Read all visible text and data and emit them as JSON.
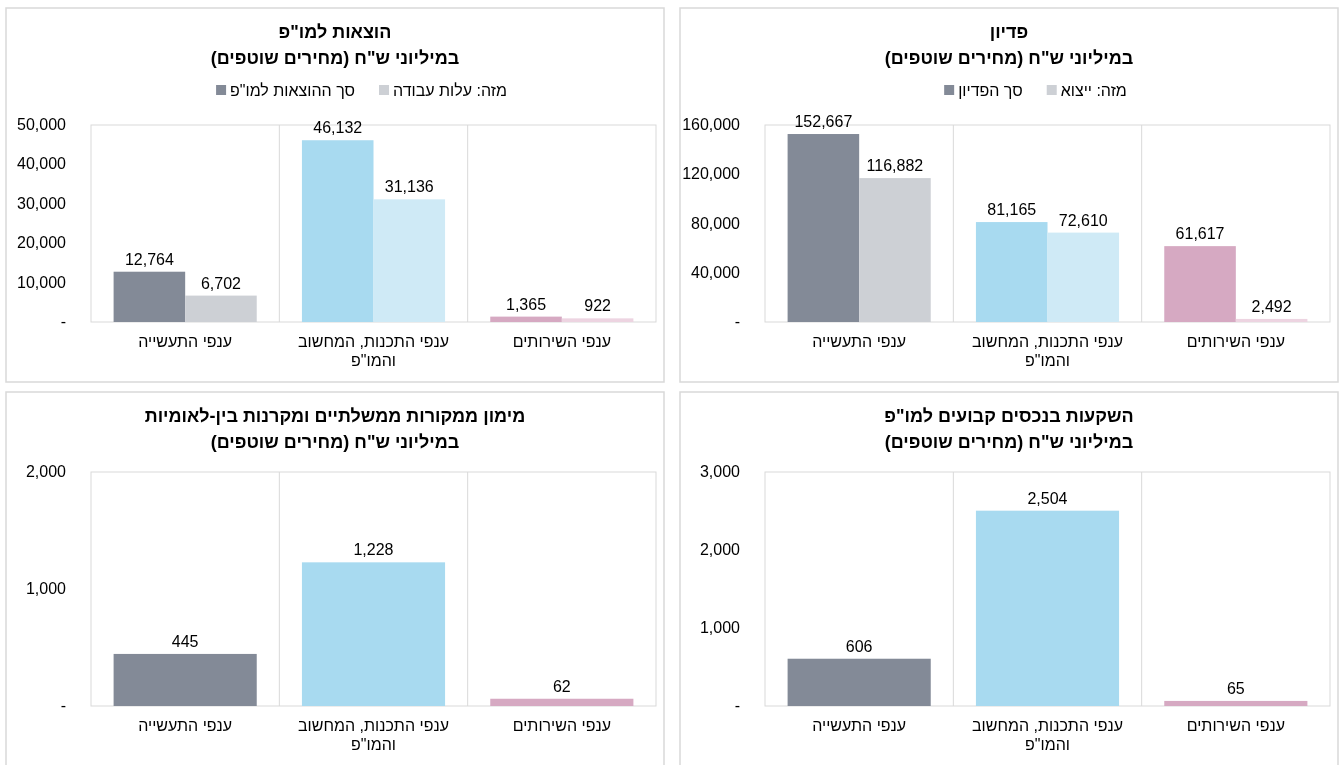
{
  "chart_data": [
    {
      "type": "bar",
      "title": "פדיון",
      "subtitle": "במיליוני ש\"ח (מחירים שוטפים)",
      "categories": [
        "ענפי התעשייה",
        "ענפי התכנות, המחשוב והמו\"פ",
        "ענפי השירותים"
      ],
      "series": [
        {
          "name": "סך הפדיון",
          "color": "#838a97",
          "colors": [
            "#838a97",
            "#a8daf0",
            "#d6a9c2"
          ],
          "values": [
            152667,
            81165,
            61617
          ],
          "value_labels": [
            "152,667",
            "81,165",
            "61,617"
          ]
        },
        {
          "name": "מזה: ייצוא",
          "color": "#cdd0d5",
          "colors": [
            "#cdd0d5",
            "#cfeaf6",
            "#edd4e1"
          ],
          "values": [
            116882,
            72610,
            2492
          ],
          "value_labels": [
            "116,882",
            "72,610",
            "2,492"
          ]
        }
      ],
      "ylim": [
        0,
        160000
      ],
      "yticks": [
        {
          "value": 0,
          "label": "-"
        },
        {
          "value": 40000,
          "label": "40,000"
        },
        {
          "value": 80000,
          "label": "80,000"
        },
        {
          "value": 120000,
          "label": "120,000"
        },
        {
          "value": 160000,
          "label": "160,000"
        }
      ],
      "grid": "x",
      "legend": "top"
    },
    {
      "type": "bar",
      "title": "הוצאות למו\"פ",
      "subtitle": "במיליוני ש\"ח (מחירים שוטפים)",
      "categories": [
        "ענפי התעשייה",
        "ענפי התכנות, המחשוב והמו\"פ",
        "ענפי השירותים"
      ],
      "series": [
        {
          "name": "סך ההוצאות למו\"פ",
          "color": "#838a97",
          "colors": [
            "#838a97",
            "#a8daf0",
            "#d6a9c2"
          ],
          "values": [
            12764,
            46132,
            1365
          ],
          "value_labels": [
            "12,764",
            "46,132",
            "1,365"
          ]
        },
        {
          "name": "מזה: עלות עבודה",
          "color": "#cdd0d5",
          "colors": [
            "#cdd0d5",
            "#cfeaf6",
            "#edd4e1"
          ],
          "values": [
            6702,
            31136,
            922
          ],
          "value_labels": [
            "6,702",
            "31,136",
            "922"
          ]
        }
      ],
      "ylim": [
        0,
        50000
      ],
      "yticks": [
        {
          "value": 0,
          "label": "-"
        },
        {
          "value": 10000,
          "label": "10,000"
        },
        {
          "value": 20000,
          "label": "20,000"
        },
        {
          "value": 30000,
          "label": "30,000"
        },
        {
          "value": 40000,
          "label": "40,000"
        },
        {
          "value": 50000,
          "label": "50,000"
        }
      ],
      "grid": "x",
      "legend": "top"
    },
    {
      "type": "bar",
      "title": "השקעות בנכסים קבועים למו\"פ",
      "subtitle": "במיליוני ש\"ח (מחירים שוטפים)",
      "categories": [
        "ענפי התעשייה",
        "ענפי התכנות, המחשוב והמו\"פ",
        "ענפי השירותים"
      ],
      "series": [
        {
          "colors": [
            "#838a97",
            "#a8daf0",
            "#d6a9c2"
          ],
          "values": [
            606,
            2504,
            65
          ],
          "value_labels": [
            "606",
            "2,504",
            "65"
          ]
        }
      ],
      "ylim": [
        0,
        3000
      ],
      "yticks": [
        {
          "value": 0,
          "label": "-"
        },
        {
          "value": 1000,
          "label": "1,000"
        },
        {
          "value": 2000,
          "label": "2,000"
        },
        {
          "value": 3000,
          "label": "3,000"
        }
      ],
      "grid": "x"
    },
    {
      "type": "bar",
      "title": "מימון ממקורות ממשלתיים ומקרנות בין-לאומיות",
      "subtitle": "במיליוני ש\"ח (מחירים שוטפים)",
      "categories": [
        "ענפי התעשייה",
        "ענפי התכנות, המחשוב והמו\"פ",
        "ענפי השירותים"
      ],
      "series": [
        {
          "colors": [
            "#838a97",
            "#a8daf0",
            "#d6a9c2"
          ],
          "values": [
            445,
            1228,
            62
          ],
          "value_labels": [
            "445",
            "1,228",
            "62"
          ]
        }
      ],
      "ylim": [
        0,
        2000
      ],
      "yticks": [
        {
          "value": 0,
          "label": "-"
        },
        {
          "value": 1000,
          "label": "1,000"
        },
        {
          "value": 2000,
          "label": "2,000"
        }
      ],
      "grid": "x"
    }
  ]
}
